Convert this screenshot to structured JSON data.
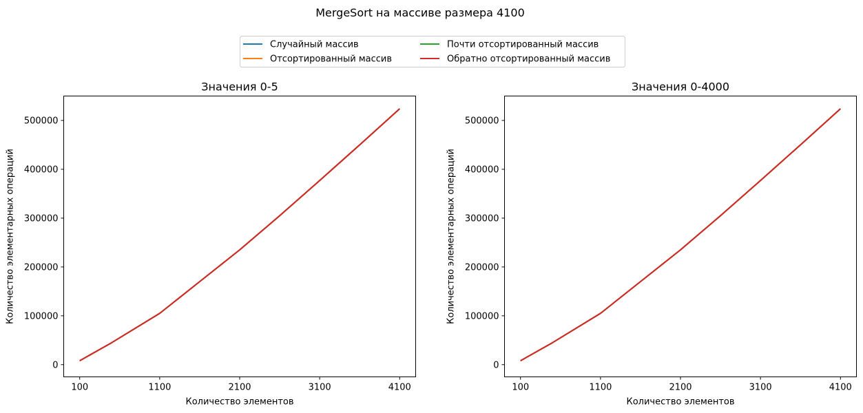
{
  "figure": {
    "title": "MergeSort на массиве размера 4100"
  },
  "legend": {
    "placement": "top-center",
    "entries": [
      {
        "label": "Случайный массив",
        "color": "#1f77b4"
      },
      {
        "label": "Отсортированный массив",
        "color": "#ff7f0e"
      },
      {
        "label": "Почти отсортированный массив",
        "color": "#2ca02c"
      },
      {
        "label": "Обратно отсортированный массив",
        "color": "#d62728"
      }
    ]
  },
  "chart_data": [
    {
      "type": "line",
      "title": "Значения 0-5",
      "xlabel": "Количество элементов",
      "ylabel": "Количество элементарных операций",
      "xlim": [
        100,
        4100
      ],
      "ylim": [
        0,
        550000
      ],
      "xticks": [
        100,
        1100,
        2100,
        3100,
        4100
      ],
      "yticks": [
        0,
        100000,
        200000,
        300000,
        400000,
        500000
      ],
      "grid": false,
      "x": [
        100,
        500,
        1100,
        1600,
        2100,
        2600,
        3100,
        3600,
        4100
      ],
      "series": [
        {
          "name": "Случайный массив",
          "color": "#1f77b4",
          "values": [
            8000,
            45000,
            105000,
            170000,
            235000,
            305000,
            377000,
            450000,
            524000
          ]
        },
        {
          "name": "Отсортированный массив",
          "color": "#ff7f0e",
          "values": [
            8000,
            45000,
            105000,
            170000,
            235000,
            305000,
            377000,
            450000,
            524000
          ]
        },
        {
          "name": "Почти отсортированный массив",
          "color": "#2ca02c",
          "values": [
            8000,
            45000,
            105000,
            170000,
            235000,
            305000,
            377000,
            450000,
            524000
          ]
        },
        {
          "name": "Обратно отсортированный массив",
          "color": "#d62728",
          "values": [
            8000,
            45000,
            105000,
            170000,
            235000,
            305000,
            377000,
            450000,
            524000
          ]
        }
      ]
    },
    {
      "type": "line",
      "title": "Значения 0-4000",
      "xlabel": "Количество элементов",
      "ylabel": "Количество элементарных операций",
      "xlim": [
        100,
        4100
      ],
      "ylim": [
        0,
        550000
      ],
      "xticks": [
        100,
        1100,
        2100,
        3100,
        4100
      ],
      "yticks": [
        0,
        100000,
        200000,
        300000,
        400000,
        500000
      ],
      "grid": false,
      "x": [
        100,
        500,
        1100,
        1600,
        2100,
        2600,
        3100,
        3600,
        4100
      ],
      "series": [
        {
          "name": "Случайный массив",
          "color": "#1f77b4",
          "values": [
            8000,
            45000,
            105000,
            170000,
            235000,
            305000,
            377000,
            450000,
            524000
          ]
        },
        {
          "name": "Отсортированный массив",
          "color": "#ff7f0e",
          "values": [
            8000,
            45000,
            105000,
            170000,
            235000,
            305000,
            377000,
            450000,
            524000
          ]
        },
        {
          "name": "Почти отсортированный массив",
          "color": "#2ca02c",
          "values": [
            8000,
            45000,
            105000,
            170000,
            235000,
            305000,
            377000,
            450000,
            524000
          ]
        },
        {
          "name": "Обратно отсортированный массив",
          "color": "#d62728",
          "values": [
            8000,
            45000,
            105000,
            170000,
            235000,
            305000,
            377000,
            450000,
            524000
          ]
        }
      ]
    }
  ]
}
